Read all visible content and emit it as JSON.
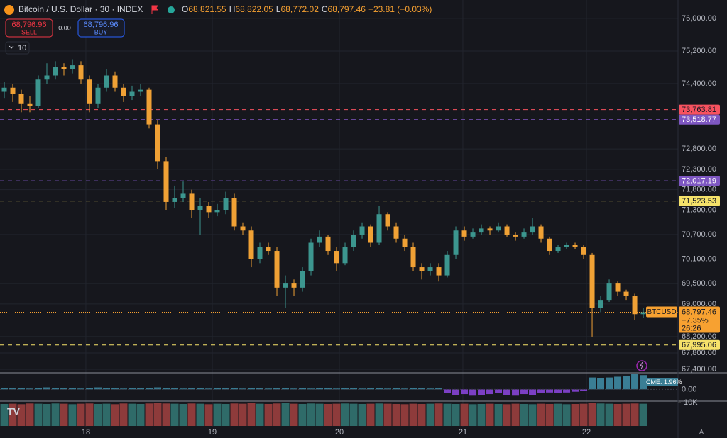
{
  "chart_data": {
    "type": "candlestick",
    "header": {
      "title": "Bitcoin / U.S. Dollar · 30 · INDEX",
      "ohlc": [
        {
          "key": "O",
          "value": "68,821.55"
        },
        {
          "key": "H",
          "value": "68,822.05"
        },
        {
          "key": "L",
          "value": "68,772.02"
        },
        {
          "key": "C",
          "value": "68,797.46"
        }
      ],
      "change": "−23.81 (−0.03%)",
      "sell": {
        "price": "68,796.96",
        "label": "SELL"
      },
      "spread": "0.00",
      "buy": {
        "price": "68,796.96",
        "label": "BUY"
      },
      "interval": "10"
    },
    "colors": {
      "up": "#3c968f",
      "down": "#f0a135"
    },
    "candles": [
      [
        74200,
        74450,
        74050,
        74300
      ],
      [
        74300,
        74400,
        73950,
        74150
      ],
      [
        74150,
        74250,
        73700,
        73900
      ],
      [
        73900,
        74100,
        73700,
        73850
      ],
      [
        73850,
        74600,
        73800,
        74500
      ],
      [
        74500,
        74900,
        74400,
        74600
      ],
      [
        74600,
        74950,
        74500,
        74800
      ],
      [
        74800,
        74900,
        74600,
        74750
      ],
      [
        74750,
        75000,
        74650,
        74850
      ],
      [
        74850,
        74950,
        74400,
        74500
      ],
      [
        74500,
        74600,
        73700,
        73900
      ],
      [
        73900,
        74400,
        73800,
        74300
      ],
      [
        74300,
        74750,
        74200,
        74600
      ],
      [
        74600,
        74700,
        74200,
        74300
      ],
      [
        74300,
        74400,
        73950,
        74100
      ],
      [
        74100,
        74350,
        74000,
        74200
      ],
      [
        74200,
        74400,
        74100,
        74250
      ],
      [
        74250,
        74300,
        73300,
        73400
      ],
      [
        73400,
        73500,
        72300,
        72500
      ],
      [
        72500,
        72600,
        71300,
        71500
      ],
      [
        71500,
        71900,
        71350,
        71600
      ],
      [
        71600,
        72000,
        71500,
        71700
      ],
      [
        71700,
        71800,
        71100,
        71300
      ],
      [
        71300,
        71600,
        70700,
        71400
      ],
      [
        71400,
        71500,
        71100,
        71250
      ],
      [
        71250,
        71450,
        71150,
        71300
      ],
      [
        71300,
        71750,
        71200,
        71600
      ],
      [
        71600,
        71700,
        70800,
        70900
      ],
      [
        70900,
        71000,
        70700,
        70800
      ],
      [
        70800,
        70900,
        69900,
        70100
      ],
      [
        70100,
        70500,
        70000,
        70400
      ],
      [
        70400,
        70500,
        70200,
        70300
      ],
      [
        70300,
        70400,
        69200,
        69400
      ],
      [
        69400,
        69700,
        68900,
        69500
      ],
      [
        69500,
        69600,
        69200,
        69400
      ],
      [
        69400,
        69900,
        69300,
        69800
      ],
      [
        69800,
        70600,
        69700,
        70500
      ],
      [
        70500,
        70800,
        70400,
        70650
      ],
      [
        70650,
        70700,
        70200,
        70300
      ],
      [
        70300,
        70400,
        69800,
        70000
      ],
      [
        70000,
        70500,
        69950,
        70400
      ],
      [
        70400,
        70800,
        70300,
        70700
      ],
      [
        70700,
        71000,
        70600,
        70900
      ],
      [
        70900,
        70950,
        70400,
        70500
      ],
      [
        70500,
        71400,
        70450,
        71200
      ],
      [
        71200,
        71250,
        70800,
        70900
      ],
      [
        70900,
        71000,
        70500,
        70600
      ],
      [
        70600,
        70700,
        70300,
        70400
      ],
      [
        70400,
        70500,
        69800,
        69900
      ],
      [
        69900,
        70000,
        69600,
        69800
      ],
      [
        69800,
        70000,
        69700,
        69900
      ],
      [
        69900,
        70000,
        69550,
        69700
      ],
      [
        69700,
        70300,
        69650,
        70200
      ],
      [
        70200,
        70900,
        70100,
        70800
      ],
      [
        70800,
        70900,
        70550,
        70650
      ],
      [
        70650,
        70850,
        70600,
        70750
      ],
      [
        70750,
        70950,
        70700,
        70850
      ],
      [
        70850,
        70900,
        70700,
        70800
      ],
      [
        70800,
        71000,
        70750,
        70900
      ],
      [
        70900,
        70950,
        70650,
        70700
      ],
      [
        70700,
        70750,
        70550,
        70650
      ],
      [
        70650,
        70850,
        70600,
        70750
      ],
      [
        70750,
        71100,
        70700,
        70900
      ],
      [
        70900,
        70950,
        70500,
        70600
      ],
      [
        70600,
        70650,
        70200,
        70300
      ],
      [
        70300,
        70450,
        70250,
        70400
      ],
      [
        70400,
        70500,
        70350,
        70450
      ],
      [
        70450,
        70500,
        70350,
        70400
      ],
      [
        70400,
        70450,
        70100,
        70200
      ],
      [
        70200,
        70250,
        68200,
        68900
      ],
      [
        68900,
        69200,
        68800,
        69100
      ],
      [
        69100,
        69600,
        69050,
        69500
      ],
      [
        69500,
        69550,
        69200,
        69300
      ],
      [
        69300,
        69350,
        69100,
        69200
      ],
      [
        69200,
        69250,
        68600,
        68750
      ],
      [
        68750,
        68900,
        68650,
        68797.46
      ]
    ],
    "xlim": [
      -0.5,
      79.08
    ],
    "xticks": [
      {
        "value": 9.58,
        "label": "18"
      },
      {
        "value": 24.42,
        "label": "19"
      },
      {
        "value": 39.33,
        "label": "20"
      },
      {
        "value": 53.83,
        "label": "21"
      },
      {
        "value": 68.33,
        "label": "22"
      }
    ],
    "ylim": [
      67330,
      76450
    ],
    "yticks": [
      {
        "value": 76000,
        "label": "76,000.00"
      },
      {
        "value": 75200,
        "label": "75,200.00"
      },
      {
        "value": 74400,
        "label": "74,400.00"
      },
      {
        "value": 72800,
        "label": "72,800.00"
      },
      {
        "value": 72300,
        "label": "72,300.00"
      },
      {
        "value": 71800,
        "label": "71,800.00"
      },
      {
        "value": 71300,
        "label": "71,300.00"
      },
      {
        "value": 70700,
        "label": "70,700.00"
      },
      {
        "value": 70100,
        "label": "70,100.00"
      },
      {
        "value": 69500,
        "label": "69,500.00"
      },
      {
        "value": 69000,
        "label": "69,000.00"
      },
      {
        "value": 68200,
        "label": "68,200.00"
      },
      {
        "value": 67800,
        "label": "67,800.00"
      },
      {
        "value": 67400,
        "label": "67,400.00"
      }
    ],
    "levels": [
      {
        "value": 73763.81,
        "label": "73,763.81",
        "color": "#f7525f"
      },
      {
        "value": 73518.77,
        "label": "73,518.77",
        "color": "#7e57c2"
      },
      {
        "value": 72017.19,
        "label": "72,017.19",
        "color": "#7e57c2"
      },
      {
        "value": 71523.53,
        "label": "71,523.53",
        "color": "#f5e26a"
      },
      {
        "value": 67995.06,
        "label": "67,995.06",
        "color": "#f5e26a"
      }
    ],
    "last_price": {
      "value": 68797.46,
      "label": "68,797.46",
      "symbol": "BTCUSD",
      "change_pct": "−7.35%",
      "countdown": "26:26",
      "color": "#f7a131"
    },
    "cme": {
      "label": "CME: 1.96%",
      "ylim": [
        -1.4,
        2.0
      ],
      "yticks": [
        {
          "value": 0,
          "label": "0.00"
        }
      ],
      "values": [
        0.2,
        0.15,
        0.2,
        0.1,
        0.2,
        0.25,
        0.2,
        0.15,
        0.2,
        0.1,
        0.2,
        0.25,
        0.15,
        0.2,
        0.1,
        0.2,
        0.15,
        0.2,
        0.25,
        0.2,
        0.15,
        0.1,
        0.2,
        0.15,
        0.1,
        0.2,
        0.15,
        0.2,
        0.1,
        0.15,
        0.2,
        0.1,
        0.15,
        0.2,
        0.1,
        0.15,
        0.1,
        0.2,
        0.15,
        0.1,
        0.15,
        0.2,
        0.1,
        0.15,
        0.2,
        0.1,
        0.15,
        0.1,
        0.2,
        0.15,
        0.1,
        0.15,
        -0.5,
        -0.7,
        -0.6,
        -0.8,
        -0.7,
        -0.6,
        -0.5,
        -0.7,
        -0.8,
        -0.6,
        -0.7,
        -0.5,
        -0.4,
        -0.5,
        -0.4,
        -0.3,
        -0.2,
        1.5,
        1.4,
        1.5,
        1.6,
        1.7,
        1.96,
        1.8
      ]
    },
    "volume": {
      "ylim": [
        0,
        10000
      ],
      "yticks": [
        {
          "value": 10000,
          "label": "10K"
        }
      ],
      "values": [
        9400,
        9500,
        9300,
        9600,
        9500,
        9400,
        9600,
        9500,
        9300,
        9500,
        9600,
        9400,
        9500,
        9300,
        9600,
        9500,
        9400,
        9600,
        9700,
        9600,
        9500,
        9400,
        9600,
        9500,
        9300,
        9500,
        9400,
        9600,
        9500,
        9700,
        9500,
        9400,
        9600,
        9700,
        9500,
        9400,
        9600,
        9500,
        9400,
        9500,
        9600,
        9500,
        9400,
        9500,
        9600,
        9500,
        9400,
        9300,
        9500,
        9400,
        9500,
        9600,
        9500,
        9400,
        9500,
        9300,
        9400,
        9500,
        9400,
        9300,
        9500,
        9400,
        9300,
        9500,
        9400,
        9500,
        9300,
        9400,
        9500,
        9800,
        9600,
        9500,
        9400,
        9500,
        9600,
        9500
      ]
    }
  }
}
